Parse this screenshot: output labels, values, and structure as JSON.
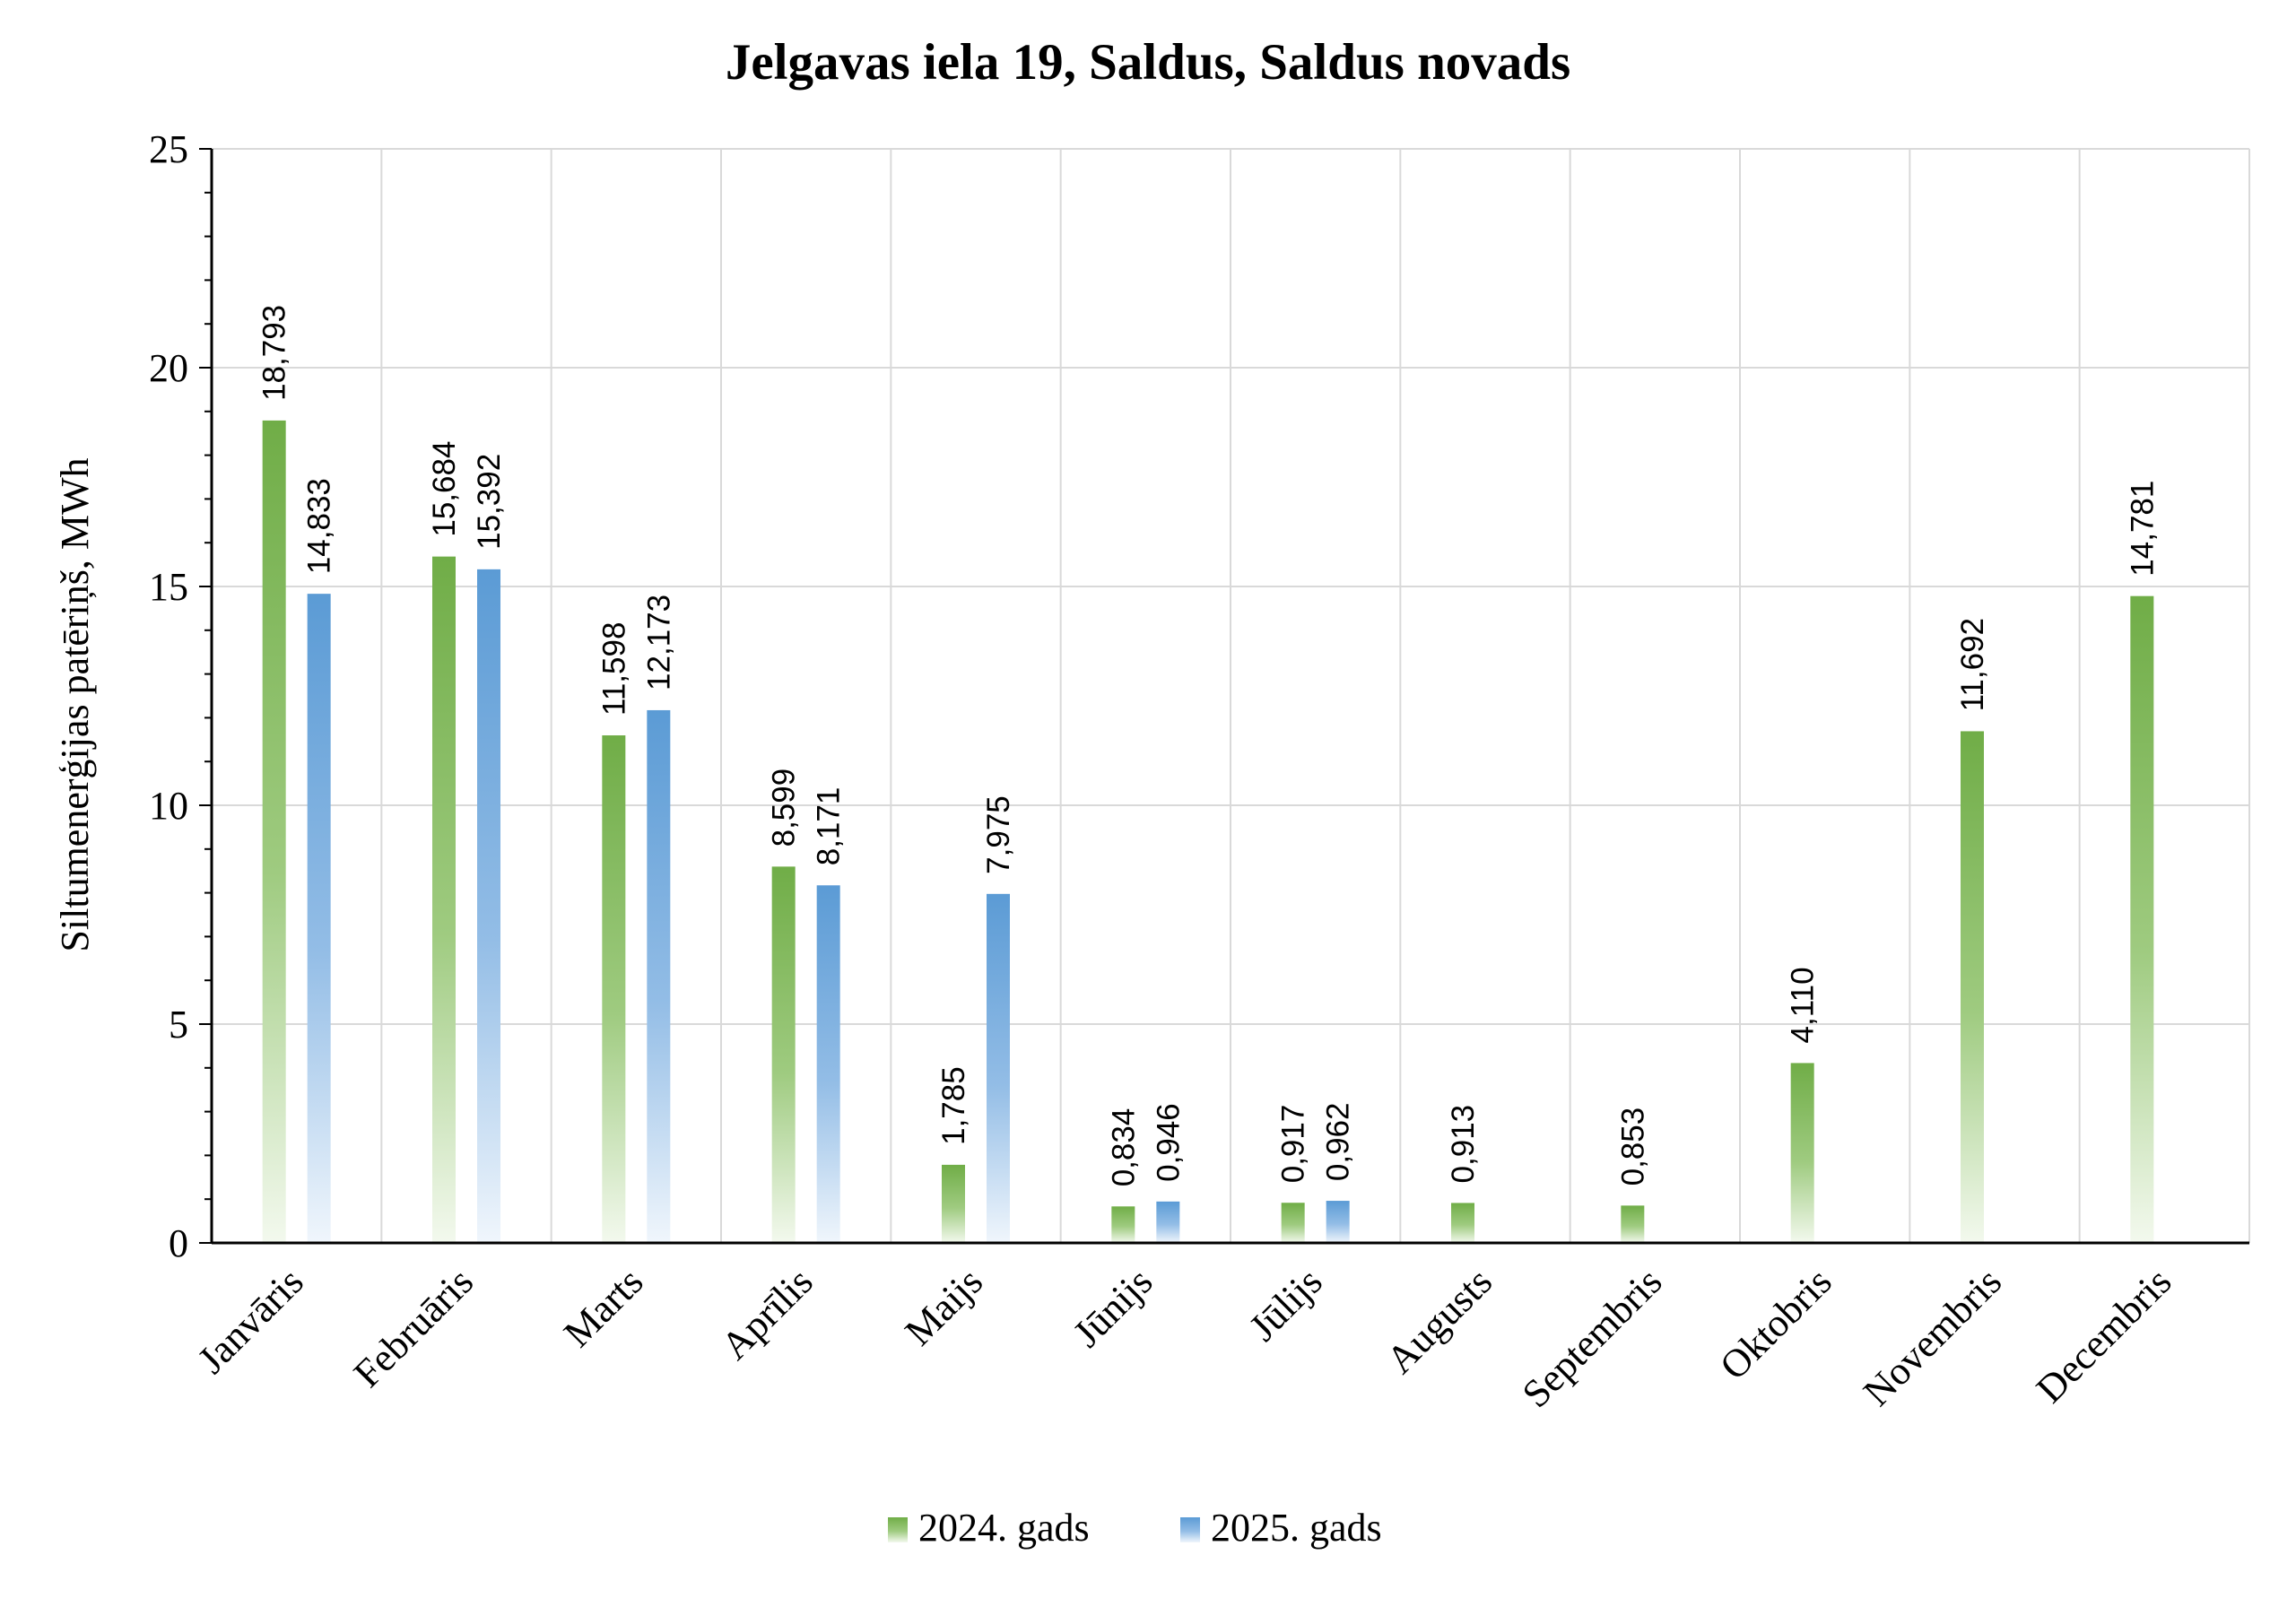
{
  "chart_data": {
    "type": "bar",
    "title": "Jelgavas iela 19, Saldus, Saldus novads",
    "xlabel": "",
    "ylabel": "Siltumenerģijas patēriņš, MWh",
    "ylim": [
      0,
      25
    ],
    "yticks": [
      0,
      5,
      10,
      15,
      20,
      25
    ],
    "grid": true,
    "legend_position": "bottom",
    "categories": [
      "Janvāris",
      "Februāris",
      "Marts",
      "Aprīlis",
      "Maijs",
      "Jūnijs",
      "Jūlijs",
      "Augusts",
      "Septembris",
      "Oktobris",
      "Novembris",
      "Decembris"
    ],
    "series": [
      {
        "name": "2024. gads",
        "color": "#70ad47",
        "values": [
          18.793,
          15.684,
          11.598,
          8.599,
          1.785,
          0.834,
          0.917,
          0.913,
          0.853,
          4.11,
          11.692,
          14.781
        ],
        "labels": [
          "18,793",
          "15,684",
          "11,598",
          "8,599",
          "1,785",
          "0,834",
          "0,917",
          "0,913",
          "0,853",
          "4,110",
          "11,692",
          "14,781"
        ]
      },
      {
        "name": "2025. gads",
        "color": "#5b9bd5",
        "values": [
          14.833,
          15.392,
          12.173,
          8.171,
          7.975,
          0.946,
          0.962,
          null,
          null,
          null,
          null,
          null
        ],
        "labels": [
          "14,833",
          "15,392",
          "12,173",
          "8,171",
          "7,975",
          "0,946",
          "0,962",
          null,
          null,
          null,
          null,
          null
        ]
      }
    ]
  }
}
